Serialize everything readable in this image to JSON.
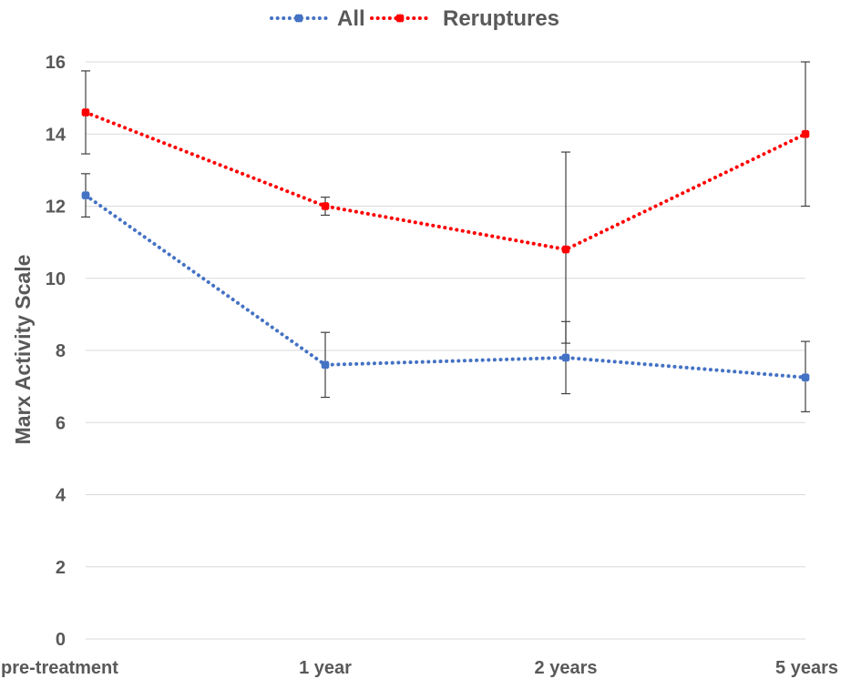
{
  "chart_data": {
    "type": "line",
    "categories": [
      "pre-treatment",
      "1 year",
      "2 years",
      "5 years"
    ],
    "ylabel": "Marx Activity Scale",
    "xlabel": "",
    "ylim": [
      0,
      16
    ],
    "yticks": [
      0,
      2,
      4,
      6,
      8,
      10,
      12,
      14,
      16
    ],
    "grid": true,
    "legend_position": "top-center",
    "series": [
      {
        "name": "All",
        "color": "#4472c4",
        "line_style": "dotted",
        "values": [
          12.3,
          7.6,
          7.8,
          7.25
        ],
        "error_low": [
          11.7,
          6.7,
          6.8,
          6.3
        ],
        "error_high": [
          12.9,
          8.5,
          8.8,
          8.25
        ]
      },
      {
        "name": "Reruptures",
        "color": "#ff0000",
        "line_style": "dotted",
        "values": [
          14.6,
          12.0,
          10.8,
          14.0
        ],
        "error_low": [
          13.45,
          11.75,
          8.2,
          12.0
        ],
        "error_high": [
          15.75,
          12.25,
          13.5,
          16.0
        ]
      }
    ]
  }
}
